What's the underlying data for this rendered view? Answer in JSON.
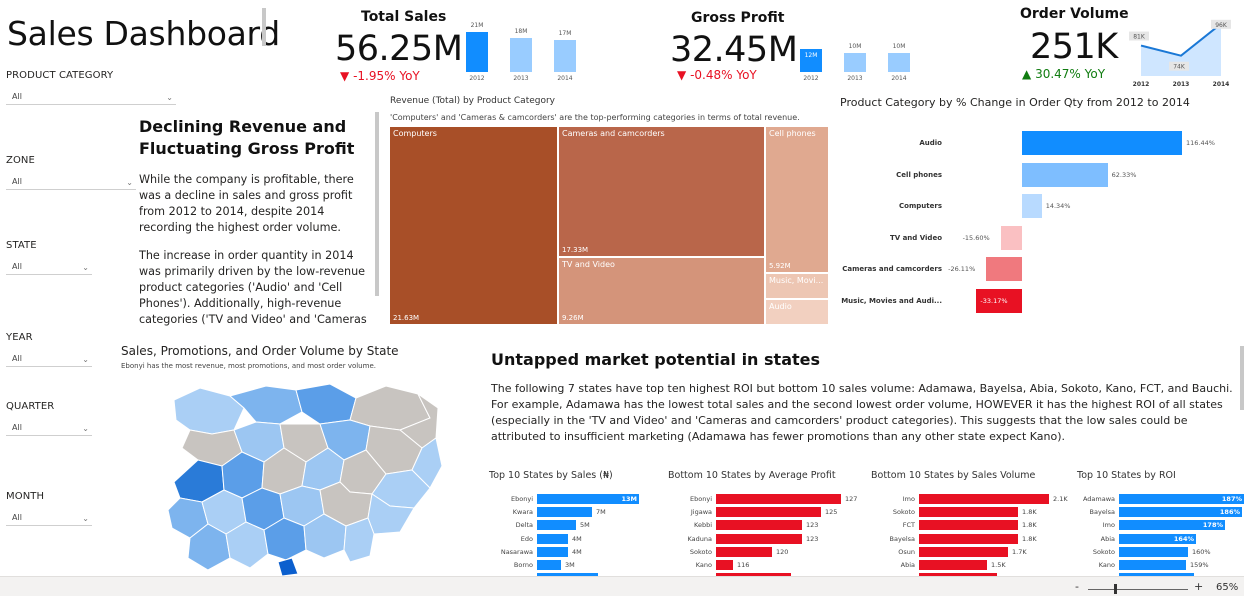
{
  "title": "Sales Dashboard",
  "colors": {
    "dark_blue": "#118DFF",
    "light_blue": "#99CCFF",
    "mid_blue": "#5FAEFF",
    "red": "#E81123",
    "pink": "#F4A6A8",
    "brown": "#A84F28"
  },
  "slicers": [
    {
      "label": "PRODUCT CATEGORY",
      "value": "All"
    },
    {
      "label": "ZONE",
      "value": "All"
    },
    {
      "label": "STATE",
      "value": "All"
    },
    {
      "label": "YEAR",
      "value": "All"
    },
    {
      "label": "QUARTER",
      "value": "All"
    },
    {
      "label": "MONTH",
      "value": "All"
    }
  ],
  "kpis": {
    "sales": {
      "title": "Total Sales",
      "value": "56.25M",
      "yoy": "-1.95% YoY",
      "bars": [
        {
          "year": "2012",
          "label": "21M",
          "value": 21
        },
        {
          "year": "2013",
          "label": "18M",
          "value": 18
        },
        {
          "year": "2014",
          "label": "17M",
          "value": 17
        }
      ]
    },
    "profit": {
      "title": "Gross Profit",
      "value": "32.45M",
      "yoy": "-0.48% YoY",
      "bars": [
        {
          "year": "2012",
          "label": "12M",
          "value": 12
        },
        {
          "year": "2013",
          "label": "10M",
          "value": 10
        },
        {
          "year": "2014",
          "label": "10M",
          "value": 10
        }
      ]
    },
    "orders": {
      "title": "Order Volume",
      "value": "251K",
      "yoy": "30.47% YoY",
      "points": [
        {
          "year": "2012",
          "label": "81K",
          "value": 81
        },
        {
          "year": "2013",
          "label": "74K",
          "value": 74
        },
        {
          "year": "2014",
          "label": "96K",
          "value": 96
        }
      ]
    }
  },
  "narrative": {
    "heading": "Declining Revenue and Fluctuating Gross Profit",
    "p1": "While the company is profitable, there was a decline in sales and gross profit from 2012 to 2014, despite 2014 recording the highest order volume.",
    "p2": "The increase in order quantity in 2014 was primarily driven by the low-revenue product categories ('Audio' and 'Cell Phones'). Additionally, high-revenue categories ('TV and Video' and 'Cameras"
  },
  "treemap": {
    "title": "Revenue (Total) by Product Category",
    "subtitle": "'Computers' and 'Cameras & camcorders' are the top-performing categories in terms of total revenue.",
    "cells": [
      {
        "name": "Computers",
        "value": "21.63M",
        "color": "#A84F28"
      },
      {
        "name": "Cameras and camcorders",
        "value": "17.33M",
        "color": "#B9664A"
      },
      {
        "name": "TV and Video",
        "value": "9.26M",
        "color": "#D4947A"
      },
      {
        "name": "Cell phones",
        "value": "5.92M",
        "color": "#E0A990"
      },
      {
        "name": "Music, Movi...",
        "value": "",
        "color": "#EDC6B3"
      },
      {
        "name": "Audio",
        "value": "",
        "color": "#F2D0C0"
      }
    ]
  },
  "pct_change": {
    "title": "Product Category by % Change in Order Qty from 2012 to 2014",
    "rows": [
      {
        "name": "Audio",
        "label": "116.44%",
        "value": 116.44,
        "color": "#118DFF"
      },
      {
        "name": "Cell phones",
        "label": "62.33%",
        "value": 62.33,
        "color": "#7EBEFF"
      },
      {
        "name": "Computers",
        "label": "14.34%",
        "value": 14.34,
        "color": "#B8DAFF"
      },
      {
        "name": "TV and Video",
        "label": "-15.60%",
        "value": -15.6,
        "color": "#FAC0C2"
      },
      {
        "name": "Cameras and camcorders",
        "label": "-26.11%",
        "value": -26.11,
        "color": "#F0797E"
      },
      {
        "name": "Music, Movies and Audi...",
        "label": "-33.17%",
        "value": -33.17,
        "color": "#E81123"
      }
    ]
  },
  "map": {
    "title": "Sales, Promotions, and Order Volume by State",
    "subtitle": "Ebonyi has the most revenue, most promotions, and most order volume."
  },
  "untapped": {
    "heading": "Untapped market potential in states",
    "text": "The following 7 states have top ten highest ROI but bottom 10 sales volume: Adamawa, Bayelsa, Abia, Sokoto, Kano, FCT, and Bauchi. For example, Adamawa has the lowest total sales and the second lowest order volume, HOWEVER it has the highest ROI of all states (especially in the 'TV and Video' and 'Cameras and camcorders' product categories). This suggests that the low sales could be attributed to insufficient marketing (Adamawa has fewer promotions than any other state expect Kano)."
  },
  "chart_data": [
    {
      "type": "bar",
      "title": "Top 10 States by Sales (₦)",
      "categories": [
        "Ebonyi",
        "Kwara",
        "Delta",
        "Edo",
        "Nasarawa",
        "Borno"
      ],
      "values": [
        13,
        7,
        5,
        4,
        4,
        3
      ],
      "labels": [
        "13M",
        "7M",
        "5M",
        "4M",
        "4M",
        "3M"
      ],
      "color": "#118DFF"
    },
    {
      "type": "bar",
      "title": "Bottom 10 States by Average Profit",
      "categories": [
        "Ebonyi",
        "Jigawa",
        "Kebbi",
        "Kaduna",
        "Sokoto",
        "Kano"
      ],
      "values": [
        127,
        125,
        123,
        123,
        120,
        116
      ],
      "labels": [
        "127",
        "125",
        "123",
        "123",
        "120",
        "116"
      ],
      "color": "#E81123"
    },
    {
      "type": "bar",
      "title": "Bottom 10 States by Sales Volume",
      "categories": [
        "Imo",
        "Sokoto",
        "FCT",
        "Bayelsa",
        "Osun",
        "Abia"
      ],
      "values": [
        2.1,
        1.8,
        1.8,
        1.8,
        1.7,
        1.5
      ],
      "labels": [
        "2.1K",
        "1.8K",
        "1.8K",
        "1.8K",
        "1.7K",
        "1.5K"
      ],
      "color": "#E81123"
    },
    {
      "type": "bar",
      "title": "Top 10 States by ROI",
      "categories": [
        "Adamawa",
        "Bayelsa",
        "Imo",
        "Abia",
        "Sokoto",
        "Kano"
      ],
      "values": [
        187,
        186,
        178,
        164,
        160,
        159
      ],
      "labels": [
        "187%",
        "186%",
        "178%",
        "164%",
        "160%",
        "159%"
      ],
      "color": "#118DFF"
    }
  ],
  "footer": {
    "zoom": "65%",
    "minus": "-",
    "plus": "+"
  }
}
